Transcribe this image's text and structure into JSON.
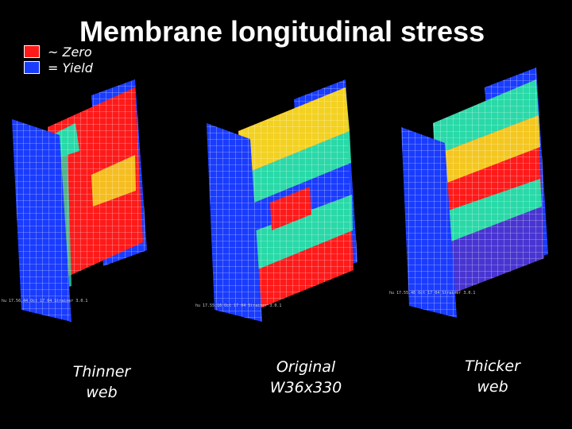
{
  "title": "Membrane longitudinal stress",
  "legend": [
    {
      "label": "~ Zero",
      "color": "#ff1a1a"
    },
    {
      "label": "= Yield",
      "color": "#1a3cff"
    }
  ],
  "panels": [
    {
      "caption_line1": "Thinner",
      "caption_line2": "web",
      "stamp": "hu 17.56.44 Oct 17 04 Strainer 3.0.1"
    },
    {
      "caption_line1": "Original",
      "caption_line2": "W36x330",
      "stamp": "hu 17.55.16 Oct 17 04 Strainer 3.0.1"
    },
    {
      "caption_line1": "Thicker",
      "caption_line2": "web",
      "stamp": "hu 17.55.46 Oct 17 04 Strainer 3.0.1"
    }
  ],
  "colors": {
    "yield": "#1a3cff",
    "zero": "#ff1a1a",
    "mid": "#29d9a8",
    "transition": "#f2e622"
  }
}
